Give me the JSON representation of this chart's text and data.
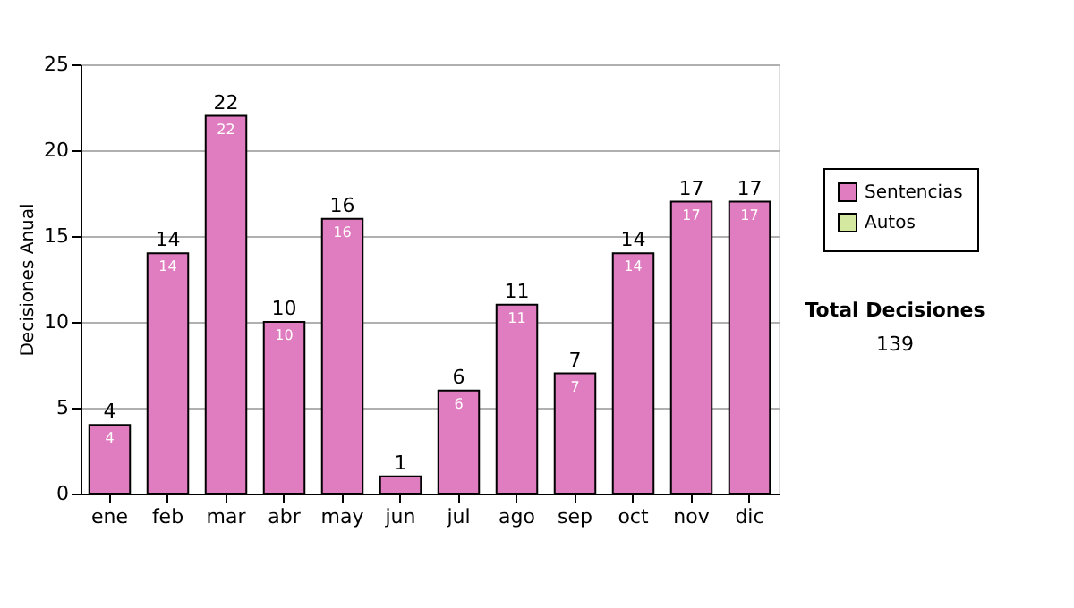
{
  "chart_data": {
    "type": "bar",
    "ylabel": "Decisiones Anual",
    "categories": [
      "ene",
      "feb",
      "mar",
      "abr",
      "may",
      "jun",
      "jul",
      "ago",
      "sep",
      "oct",
      "nov",
      "dic"
    ],
    "series": [
      {
        "name": "Sentencias",
        "color": "#e07cc0",
        "values": [
          4,
          14,
          22,
          10,
          16,
          1,
          6,
          11,
          7,
          14,
          17,
          17
        ],
        "value_labels": [
          "4",
          "14",
          "22",
          "10",
          "16",
          "1",
          "6",
          "11",
          "7",
          "14",
          "17",
          "17"
        ]
      },
      {
        "name": "Autos",
        "color": "#d4e8a0",
        "values": [
          null,
          null,
          null,
          null,
          null,
          null,
          null,
          null,
          null,
          null,
          null,
          null
        ]
      }
    ],
    "ylim": [
      0,
      25
    ],
    "yticks": [
      0,
      5,
      10,
      15,
      20,
      25
    ],
    "grid": "y",
    "legend": "right",
    "annotations": [
      "Total Decisiones",
      "139"
    ]
  }
}
